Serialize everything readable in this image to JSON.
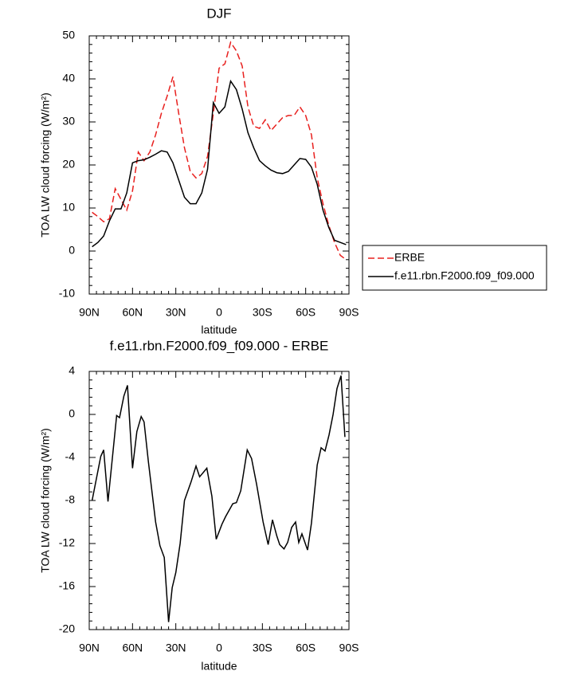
{
  "chart_data": [
    {
      "type": "line",
      "title": "DJF",
      "xlabel": "latitude",
      "ylabel": "TOA LW cloud forcing (W/m²)",
      "x": [
        88,
        84,
        80,
        76,
        72,
        68,
        64,
        60,
        56,
        52,
        48,
        44,
        40,
        36,
        32,
        28,
        24,
        20,
        16,
        12,
        8,
        4,
        0,
        -4,
        -8,
        -12,
        -16,
        -20,
        -24,
        -28,
        -32,
        -36,
        -40,
        -44,
        -48,
        -52,
        -56,
        -60,
        -64,
        -68,
        -72,
        -76,
        -80,
        -84,
        -88
      ],
      "series": [
        {
          "name": "ERBE",
          "color": "#e8201e",
          "dash": "dashed",
          "values": [
            9.0,
            8.0,
            6.8,
            7.5,
            14.5,
            12.0,
            9.5,
            14.0,
            23.0,
            21.0,
            23.0,
            27.0,
            32.0,
            36.0,
            40.5,
            32.0,
            24.0,
            18.5,
            17.0,
            18.0,
            22.0,
            32.0,
            42.5,
            43.5,
            48.5,
            46.5,
            43.0,
            33.5,
            29.0,
            28.5,
            30.5,
            28.0,
            29.5,
            31.0,
            31.5,
            31.5,
            33.5,
            31.5,
            27.0,
            17.0,
            11.0,
            6.0,
            2.0,
            -1.0,
            -2.0
          ]
        },
        {
          "name": "f.e11.rbn.F2000.f09_f09.000",
          "color": "#000000",
          "dash": "solid",
          "values": [
            1.0,
            2.0,
            3.5,
            7.0,
            9.8,
            9.8,
            13.5,
            20.5,
            21.0,
            21.2,
            21.8,
            22.5,
            23.3,
            23.0,
            20.5,
            16.5,
            12.5,
            11.0,
            11.0,
            13.5,
            19.0,
            34.5,
            32.0,
            33.5,
            39.5,
            37.5,
            33.0,
            27.5,
            24.0,
            21.0,
            19.8,
            18.8,
            18.2,
            18.0,
            18.5,
            20.0,
            21.5,
            21.3,
            19.5,
            15.5,
            9.5,
            5.5,
            2.5,
            2.0,
            1.5
          ]
        }
      ],
      "xlim": [
        90,
        -90
      ],
      "xticks": [
        {
          "value": 90,
          "label": "90N"
        },
        {
          "value": 60,
          "label": "60N"
        },
        {
          "value": 30,
          "label": "30N"
        },
        0,
        {
          "value": -30,
          "label": "30S"
        },
        {
          "value": -60,
          "label": "60S"
        },
        {
          "value": -90,
          "label": "90S"
        }
      ],
      "ylim": [
        -10,
        50
      ],
      "yticks": [
        -10,
        0,
        10,
        20,
        30,
        40,
        50
      ],
      "legend": "right"
    },
    {
      "type": "line",
      "title": "f.e11.rbn.F2000.f09_f09.000 - ERBE",
      "xlabel": "latitude",
      "ylabel": "TOA LW cloud forcing (W/m²)",
      "x": [
        88,
        82,
        80,
        77,
        71,
        69,
        66,
        63.5,
        60,
        57,
        54,
        52,
        49,
        44,
        41,
        38,
        35,
        32.5,
        30,
        27,
        24,
        19.5,
        16,
        13.5,
        8.5,
        5,
        2,
        -2,
        -4.5,
        -9.5,
        -12,
        -15,
        -19.5,
        -22.5,
        -26,
        -30.5,
        -34,
        -37,
        -40,
        -42,
        -45,
        -47.5,
        -50.3,
        -53,
        -55.2,
        -57.4,
        -61.3,
        -64,
        -68,
        -70.7,
        -73.4,
        -76.2,
        -79,
        -81.7,
        -84.5,
        -87.2
      ],
      "series": [
        {
          "color": "#000000",
          "dash": "solid",
          "values": [
            -8,
            -3.9,
            -3.3,
            -8.1,
            -0.1,
            -0.3,
            1.7,
            2.7,
            -5,
            -1.6,
            -0.2,
            -0.7,
            -4.4,
            -10,
            -12.2,
            -13.3,
            -19.3,
            -16.1,
            -14.7,
            -12,
            -8,
            -6.3,
            -4.8,
            -5.8,
            -5,
            -7.6,
            -11.6,
            -10.2,
            -9.5,
            -8.3,
            -8.2,
            -7.1,
            -3.3,
            -4.1,
            -6.5,
            -10,
            -12.1,
            -9.8,
            -11.3,
            -12.1,
            -12.5,
            -11.9,
            -10.5,
            -10,
            -11.9,
            -11.1,
            -12.6,
            -10.1,
            -4.7,
            -3.1,
            -3.4,
            -1.9,
            0,
            2.4,
            3.6,
            -2.1
          ]
        }
      ],
      "xlim": [
        90,
        -90
      ],
      "xticks": [
        {
          "value": 90,
          "label": "90N"
        },
        {
          "value": 60,
          "label": "60N"
        },
        {
          "value": 30,
          "label": "30N"
        },
        0,
        {
          "value": -30,
          "label": "30S"
        },
        {
          "value": -60,
          "label": "60S"
        },
        {
          "value": -90,
          "label": "90S"
        }
      ],
      "ylim": [
        -20,
        4
      ],
      "yticks": [
        -20,
        -16,
        -12,
        -8,
        -4,
        0,
        4
      ]
    }
  ]
}
